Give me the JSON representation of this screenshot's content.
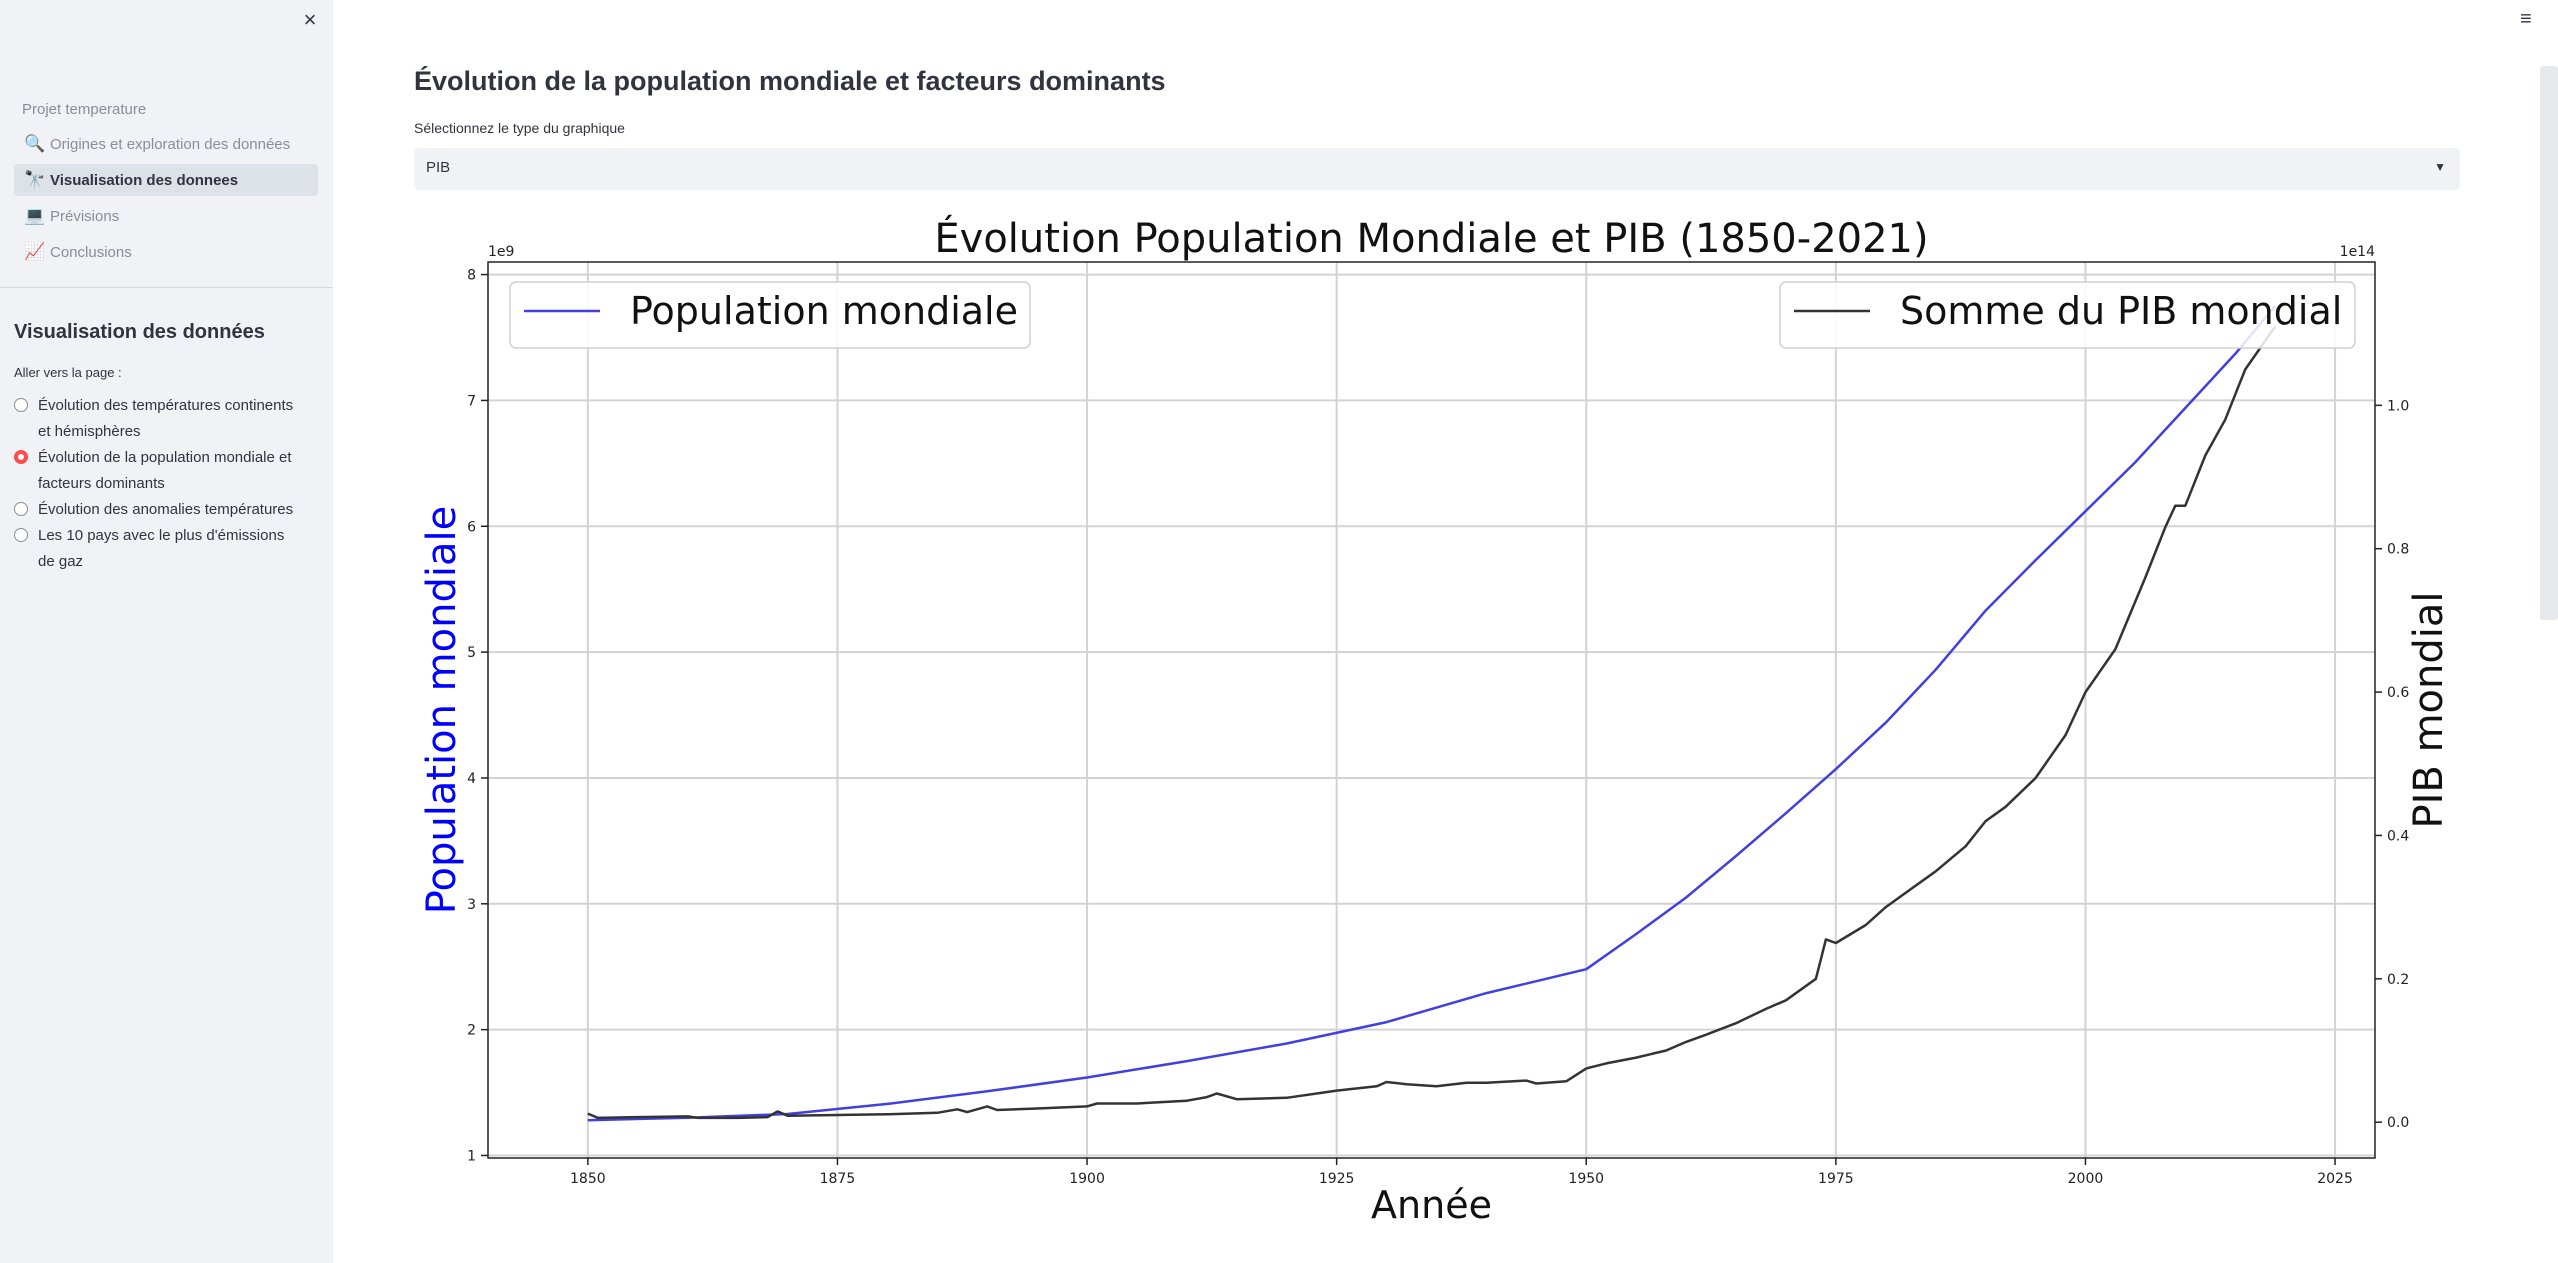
{
  "sidebar": {
    "close_label": "×",
    "nav_header": "Projet temperature",
    "nav_items": [
      {
        "label": "Origines et exploration des données",
        "icon": "magnifier-icon",
        "glyph": "🔍"
      },
      {
        "label": "Visualisation des donnees",
        "icon": "telescope-icon",
        "glyph": "🔭"
      },
      {
        "label": "Prévisions",
        "icon": "laptop-icon",
        "glyph": "💻"
      },
      {
        "label": "Conclusions",
        "icon": "chart-increasing-icon",
        "glyph": "📈"
      }
    ],
    "section_title": "Visualisation des données",
    "page_label": "Aller vers la page :",
    "radio_options": [
      {
        "label": "Évolution des températures continents et hémisphères",
        "checked": false
      },
      {
        "label": "Évolution de la population mondiale et facteurs dominants",
        "checked": true
      },
      {
        "label": "Évolution des anomalies températures",
        "checked": false
      },
      {
        "label": "Les 10 pays avec le plus d'émissions de gaz",
        "checked": false
      }
    ]
  },
  "main": {
    "title": "Évolution de la population mondiale et facteurs dominants",
    "select_label": "Sélectionnez le type du graphique",
    "select_value": "PIB",
    "menu_icon": "≡"
  },
  "colors": {
    "accent": "#ff4b4b",
    "population_line": "#4040e0",
    "pib_line": "#333333",
    "ylabel_left": "#0000ff"
  },
  "chart_data": {
    "type": "line",
    "title": "Évolution Population Mondiale et PIB (1850-2021)",
    "xlabel": "Année",
    "ylabel": "Population mondiale",
    "ylabel_right": "PIB mondial",
    "xlim": [
      1840,
      2029
    ],
    "xticks": [
      1850,
      1875,
      1900,
      1925,
      1950,
      1975,
      2000,
      2025
    ],
    "ylim": [
      0.98,
      8.1
    ],
    "yticks": [
      1,
      2,
      3,
      4,
      5,
      6,
      7,
      8
    ],
    "y_multiplier": "1e9",
    "ylim_right": [
      -0.05,
      1.2
    ],
    "yticks_right": [
      0.0,
      0.2,
      0.4,
      0.6,
      0.8,
      1.0
    ],
    "y_right_multiplier": "1e14",
    "grid": true,
    "legend_left": "top-left",
    "legend_right": "top-right",
    "series": [
      {
        "name": "Population mondiale",
        "axis": "left",
        "x": [
          1850,
          1860,
          1870,
          1880,
          1890,
          1900,
          1910,
          1920,
          1930,
          1940,
          1950,
          1955,
          1960,
          1965,
          1970,
          1975,
          1980,
          1985,
          1990,
          1995,
          2000,
          2005,
          2010,
          2015,
          2019
        ],
        "y": [
          1.28,
          1.3,
          1.33,
          1.41,
          1.51,
          1.62,
          1.75,
          1.89,
          2.06,
          2.29,
          2.48,
          2.76,
          3.05,
          3.38,
          3.72,
          4.07,
          4.44,
          4.86,
          5.33,
          5.73,
          6.12,
          6.51,
          6.94,
          7.37,
          7.75
        ]
      },
      {
        "name": "Somme du PIB mondial",
        "axis": "right",
        "x": [
          1850,
          1851,
          1855,
          1860,
          1861,
          1865,
          1868,
          1869,
          1870,
          1875,
          1880,
          1885,
          1887,
          1888,
          1890,
          1891,
          1895,
          1900,
          1901,
          1905,
          1910,
          1912,
          1913,
          1915,
          1920,
          1925,
          1929,
          1930,
          1932,
          1935,
          1938,
          1940,
          1944,
          1945,
          1948,
          1950,
          1952,
          1955,
          1958,
          1960,
          1962,
          1965,
          1968,
          1970,
          1973,
          1974,
          1975,
          1978,
          1980,
          1982,
          1985,
          1988,
          1990,
          1992,
          1995,
          1998,
          2000,
          2003,
          2006,
          2008,
          2009,
          2010,
          2012,
          2014,
          2016,
          2019
        ],
        "y": [
          0.012,
          0.006,
          0.007,
          0.008,
          0.006,
          0.006,
          0.007,
          0.015,
          0.009,
          0.01,
          0.011,
          0.013,
          0.018,
          0.014,
          0.022,
          0.017,
          0.019,
          0.022,
          0.026,
          0.026,
          0.03,
          0.035,
          0.04,
          0.032,
          0.034,
          0.044,
          0.05,
          0.056,
          0.053,
          0.05,
          0.055,
          0.055,
          0.058,
          0.054,
          0.057,
          0.075,
          0.082,
          0.09,
          0.1,
          0.112,
          0.122,
          0.138,
          0.158,
          0.17,
          0.2,
          0.255,
          0.25,
          0.275,
          0.3,
          0.32,
          0.35,
          0.385,
          0.42,
          0.44,
          0.48,
          0.54,
          0.6,
          0.66,
          0.76,
          0.83,
          0.86,
          0.86,
          0.93,
          0.98,
          1.05,
          1.11
        ]
      }
    ]
  }
}
